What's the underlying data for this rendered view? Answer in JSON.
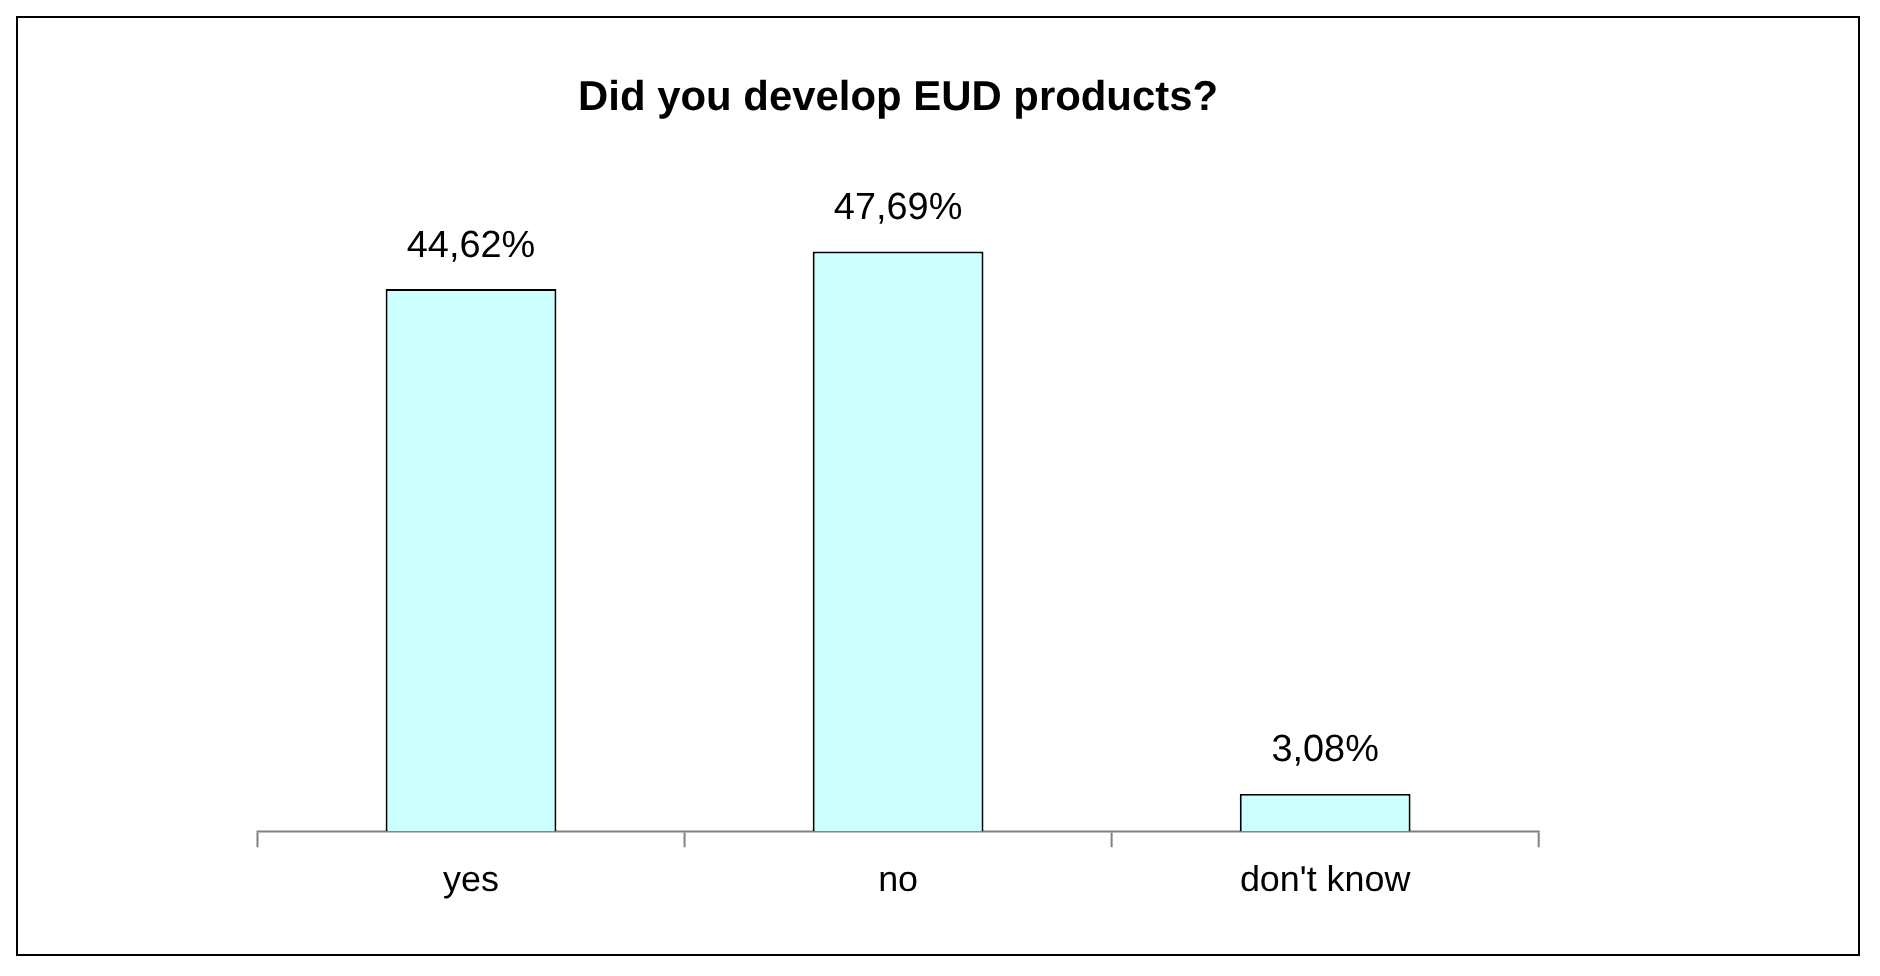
{
  "chart_data": {
    "type": "bar",
    "title": "Did you develop EUD products?",
    "categories": [
      "yes",
      "no",
      "don't know"
    ],
    "values": [
      44.62,
      47.69,
      3.08
    ],
    "value_labels": [
      "44,62%",
      "47,69%",
      "3,08%"
    ],
    "color": "#ccffff",
    "grid": false,
    "legend": false
  }
}
